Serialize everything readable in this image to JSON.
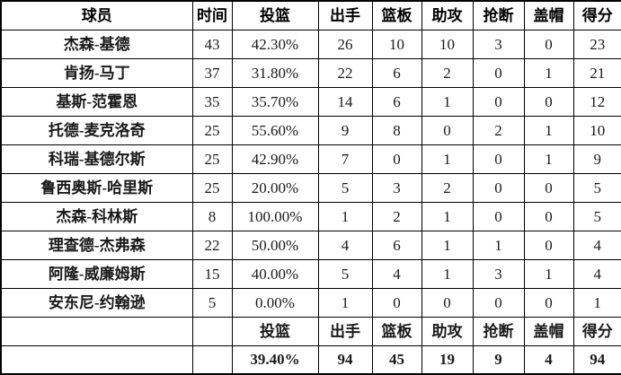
{
  "chart_data": {
    "type": "table",
    "columns": [
      "球员",
      "时间",
      "投篮",
      "出手",
      "篮板",
      "助攻",
      "抢断",
      "盖帽",
      "得分"
    ],
    "rows": [
      [
        "杰森-基德",
        "43",
        "42.30%",
        "26",
        "10",
        "10",
        "3",
        "0",
        "23"
      ],
      [
        "肯扬-马丁",
        "37",
        "31.80%",
        "22",
        "6",
        "2",
        "0",
        "1",
        "21"
      ],
      [
        "基斯-范霍恩",
        "35",
        "35.70%",
        "14",
        "6",
        "1",
        "0",
        "0",
        "12"
      ],
      [
        "托德-麦克洛奇",
        "25",
        "55.60%",
        "9",
        "8",
        "0",
        "2",
        "1",
        "10"
      ],
      [
        "科瑞-基德尔斯",
        "25",
        "42.90%",
        "7",
        "0",
        "1",
        "0",
        "1",
        "9"
      ],
      [
        "鲁西奥斯-哈里斯",
        "25",
        "20.00%",
        "5",
        "3",
        "2",
        "0",
        "0",
        "5"
      ],
      [
        "杰森-科林斯",
        "8",
        "100.00%",
        "1",
        "2",
        "1",
        "0",
        "0",
        "5"
      ],
      [
        "理查德-杰弗森",
        "22",
        "50.00%",
        "4",
        "6",
        "1",
        "1",
        "0",
        "4"
      ],
      [
        "阿隆-威廉姆斯",
        "15",
        "40.00%",
        "5",
        "4",
        "1",
        "3",
        "1",
        "4"
      ],
      [
        "安东尼-约翰逊",
        "5",
        "0.00%",
        "1",
        "0",
        "0",
        "0",
        "0",
        "1"
      ]
    ],
    "footer_labels": [
      "投篮",
      "出手",
      "篮板",
      "助攻",
      "抢断",
      "盖帽",
      "得分"
    ],
    "footer_totals": [
      "39.40%",
      "94",
      "45",
      "19",
      "9",
      "4",
      "94"
    ],
    "layout": {
      "grid": "on",
      "header_row": true,
      "totals_row_color": "#e00000",
      "border_color": "#000000",
      "background": "#ffffff"
    }
  }
}
